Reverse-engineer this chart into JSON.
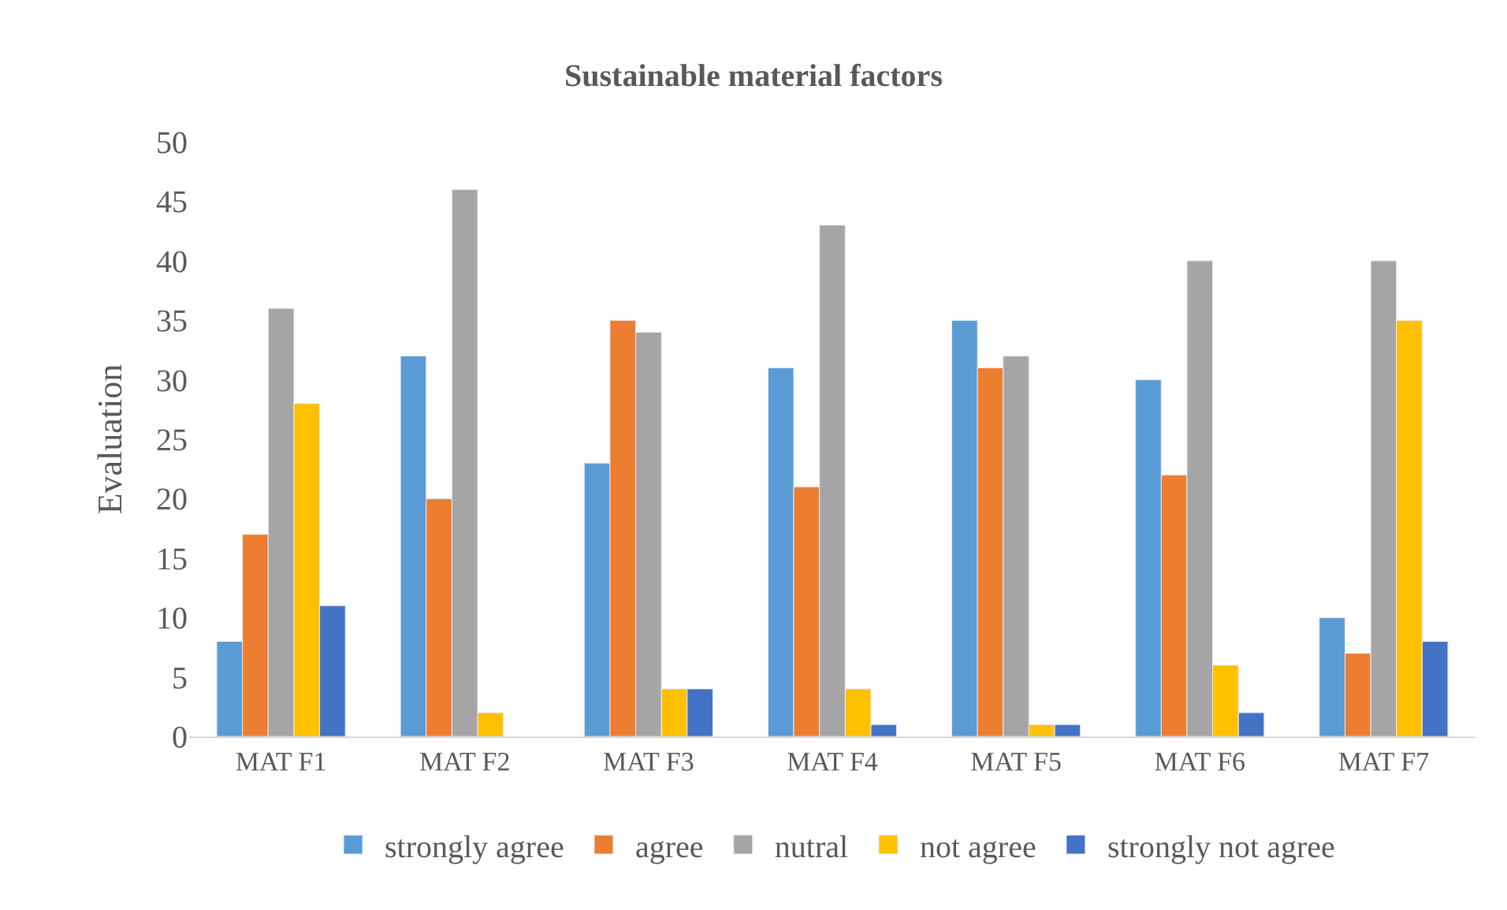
{
  "chart_data": {
    "type": "bar",
    "title": "Sustainable material factors",
    "ylabel": "Evaluation",
    "categories": [
      "MAT F1",
      "MAT F2",
      "MAT F3",
      "MAT F4",
      "MAT F5",
      "MAT F6",
      "MAT F7"
    ],
    "series": [
      {
        "name": "strongly agree",
        "color": "#5b9bd5",
        "values": [
          8,
          32,
          23,
          31,
          35,
          30,
          10
        ]
      },
      {
        "name": "agree",
        "color": "#ed7d31",
        "values": [
          17,
          20,
          35,
          21,
          31,
          22,
          7
        ]
      },
      {
        "name": "nutral",
        "color": "#a5a5a5",
        "values": [
          36,
          46,
          34,
          43,
          32,
          40,
          40
        ]
      },
      {
        "name": "not agree",
        "color": "#ffc000",
        "values": [
          28,
          2,
          4,
          4,
          1,
          6,
          35
        ]
      },
      {
        "name": "strongly not agree",
        "color": "#4472c4",
        "values": [
          11,
          null,
          4,
          1,
          1,
          2,
          8
        ]
      }
    ],
    "ylim": [
      0,
      50
    ],
    "yticks": [
      0,
      5,
      10,
      15,
      20,
      25,
      30,
      35,
      40,
      45,
      50
    ],
    "grid": false,
    "legend": "bottom"
  }
}
